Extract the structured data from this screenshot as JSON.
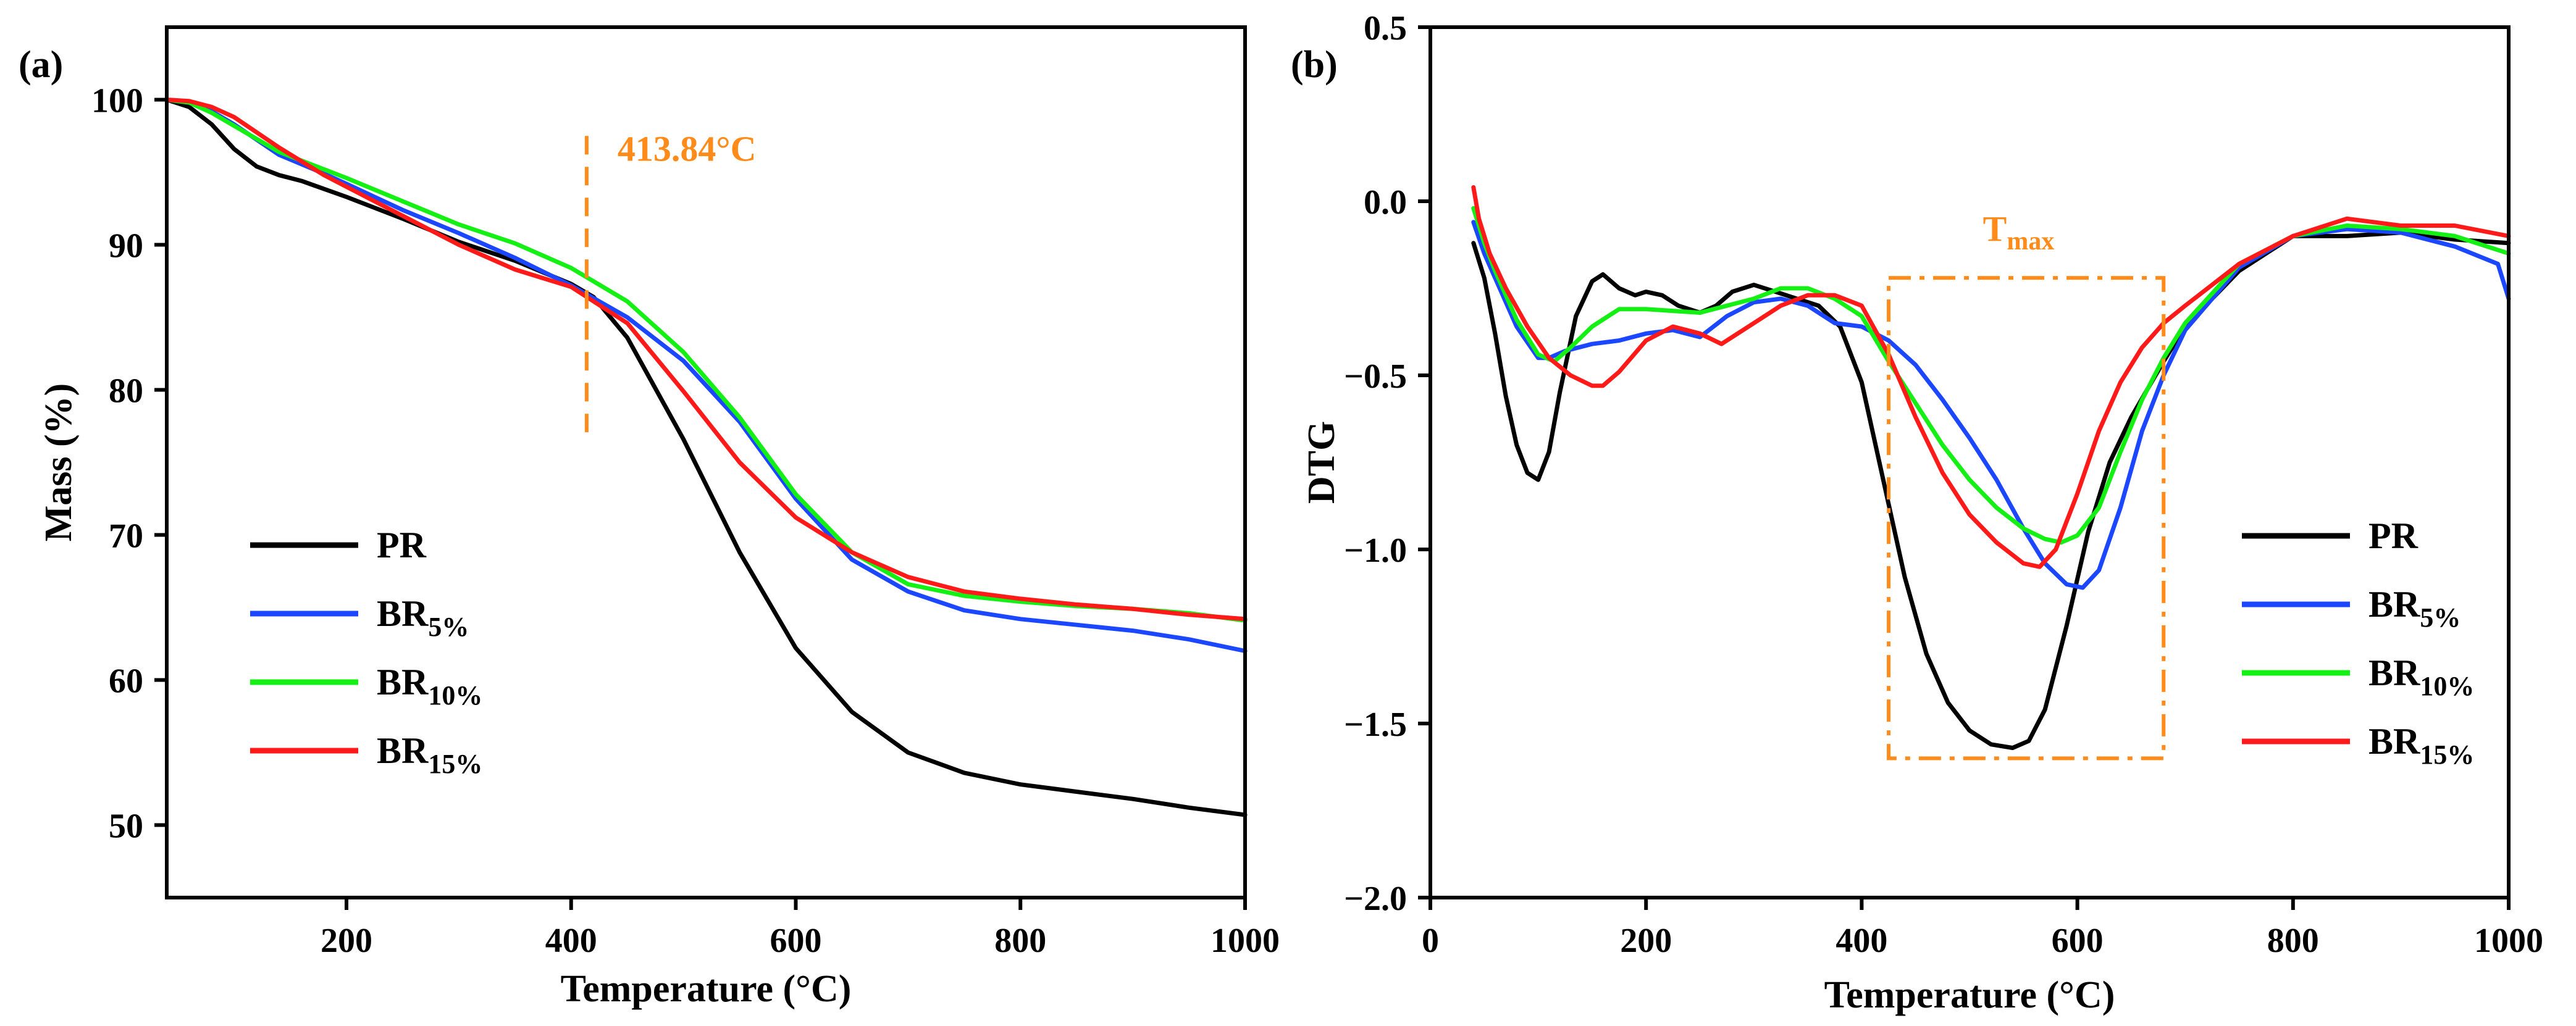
{
  "colors": {
    "PR": "#000000",
    "BR5": "#1a47ff",
    "BR10": "#14f014",
    "BR15": "#ff1a1a",
    "annotation": "#ff8c1a"
  },
  "chart_data": [
    {
      "type": "line",
      "panel_label": "(a)",
      "title": "",
      "xlabel": "Temperature (°C)",
      "ylabel": "Mass (%)",
      "xlim": [
        40,
        1000
      ],
      "ylim": [
        45,
        105
      ],
      "xticks": [
        200,
        400,
        600,
        800,
        1000
      ],
      "yticks": [
        50,
        60,
        70,
        80,
        90,
        100
      ],
      "xtick_labels": [
        "200",
        "400",
        "600",
        "800",
        "1000"
      ],
      "ytick_labels": [
        "50",
        "60",
        "70",
        "80",
        "90",
        "100"
      ],
      "grid": false,
      "legend_position": "lower-left",
      "annotations": [
        {
          "text": "413.84°C",
          "type": "vertical-dashed-line",
          "x": 413.84,
          "y_from": 77,
          "y_to": 97.5
        }
      ],
      "series": [
        {
          "key": "PR",
          "name": "PR",
          "sub": "",
          "color": "#000000",
          "x": [
            40,
            60,
            80,
            100,
            120,
            140,
            160,
            200,
            250,
            300,
            350,
            400,
            420,
            450,
            500,
            550,
            600,
            650,
            700,
            750,
            800,
            850,
            900,
            950,
            1000
          ],
          "y": [
            100,
            99.5,
            98.3,
            96.6,
            95.4,
            94.8,
            94.4,
            93.3,
            91.8,
            90.2,
            88.9,
            87.3,
            86.4,
            83.6,
            76.6,
            68.8,
            62.2,
            57.8,
            55.0,
            53.6,
            52.8,
            52.3,
            51.8,
            51.2,
            50.7
          ]
        },
        {
          "key": "BR5",
          "name": "BR",
          "sub": "5%",
          "color": "#1a47ff",
          "x": [
            40,
            60,
            80,
            100,
            140,
            180,
            200,
            250,
            300,
            350,
            400,
            450,
            500,
            550,
            600,
            650,
            700,
            750,
            800,
            850,
            900,
            950,
            1000
          ],
          "y": [
            100,
            99.8,
            99.2,
            98.3,
            96.2,
            94.9,
            94.2,
            92.4,
            90.8,
            89.1,
            87.2,
            85.0,
            82.0,
            77.8,
            72.5,
            68.3,
            66.1,
            64.8,
            64.2,
            63.8,
            63.4,
            62.8,
            62.0
          ]
        },
        {
          "key": "BR10",
          "name": "BR",
          "sub": "10%",
          "color": "#14f014",
          "x": [
            40,
            60,
            80,
            100,
            140,
            180,
            200,
            250,
            300,
            350,
            400,
            450,
            500,
            550,
            600,
            650,
            700,
            750,
            800,
            850,
            900,
            950,
            1000
          ],
          "y": [
            100,
            99.8,
            99.1,
            98.2,
            96.4,
            95.2,
            94.6,
            93.0,
            91.4,
            90.1,
            88.4,
            86.1,
            82.6,
            78.1,
            72.8,
            68.8,
            66.6,
            65.8,
            65.4,
            65.1,
            64.9,
            64.6,
            64.1
          ]
        },
        {
          "key": "BR15",
          "name": "BR",
          "sub": "15%",
          "color": "#ff1a1a",
          "x": [
            40,
            60,
            80,
            100,
            140,
            180,
            200,
            250,
            300,
            350,
            400,
            450,
            500,
            550,
            600,
            650,
            700,
            750,
            800,
            850,
            900,
            950,
            1000
          ],
          "y": [
            100,
            99.9,
            99.5,
            98.8,
            96.7,
            94.8,
            94.0,
            92.0,
            90.0,
            88.3,
            87.1,
            84.6,
            79.9,
            75.0,
            71.2,
            68.8,
            67.1,
            66.1,
            65.6,
            65.2,
            64.9,
            64.5,
            64.2
          ]
        }
      ]
    },
    {
      "type": "line",
      "panel_label": "(b)",
      "title": "",
      "xlabel": "Temperature (°C)",
      "ylabel": "DTG",
      "xlim": [
        0,
        1000
      ],
      "ylim": [
        -2.0,
        0.5
      ],
      "xticks": [
        0,
        200,
        400,
        600,
        800,
        1000
      ],
      "yticks": [
        0.5,
        0.0,
        -0.5,
        -1.0,
        -1.5,
        -2.0
      ],
      "xtick_labels": [
        "0",
        "200",
        "400",
        "600",
        "800",
        "1000"
      ],
      "ytick_labels": [
        "0.5",
        "0.0",
        "−0.5",
        "−1.0",
        "−1.5",
        "−2.0"
      ],
      "grid": false,
      "legend_position": "right",
      "annotations": [
        {
          "text": "T",
          "subtext": "max",
          "type": "dash-dot-box",
          "x_range": [
            425,
            680
          ],
          "y_range": [
            -1.6,
            -0.22
          ]
        }
      ],
      "series": [
        {
          "key": "PR",
          "name": "PR",
          "sub": "",
          "color": "#000000",
          "x": [
            40,
            50,
            60,
            70,
            80,
            90,
            100,
            110,
            120,
            135,
            150,
            160,
            175,
            190,
            200,
            215,
            230,
            250,
            265,
            280,
            300,
            320,
            340,
            360,
            380,
            400,
            420,
            440,
            460,
            480,
            500,
            520,
            540,
            555,
            570,
            590,
            610,
            630,
            650,
            680,
            700,
            750,
            800,
            850,
            900,
            950,
            1000
          ],
          "y": [
            -0.12,
            -0.22,
            -0.38,
            -0.56,
            -0.7,
            -0.78,
            -0.8,
            -0.72,
            -0.55,
            -0.33,
            -0.23,
            -0.21,
            -0.25,
            -0.27,
            -0.26,
            -0.27,
            -0.3,
            -0.32,
            -0.3,
            -0.26,
            -0.24,
            -0.26,
            -0.28,
            -0.3,
            -0.36,
            -0.52,
            -0.8,
            -1.08,
            -1.3,
            -1.44,
            -1.52,
            -1.56,
            -1.57,
            -1.55,
            -1.46,
            -1.22,
            -0.95,
            -0.75,
            -0.62,
            -0.46,
            -0.36,
            -0.2,
            -0.1,
            -0.1,
            -0.09,
            -0.11,
            -0.12
          ]
        },
        {
          "key": "BR5",
          "name": "BR",
          "sub": "5%",
          "color": "#1a47ff",
          "x": [
            40,
            50,
            60,
            80,
            100,
            110,
            125,
            150,
            175,
            200,
            225,
            250,
            275,
            300,
            325,
            350,
            375,
            400,
            425,
            450,
            475,
            500,
            525,
            550,
            570,
            590,
            605,
            620,
            640,
            660,
            680,
            700,
            750,
            800,
            850,
            900,
            950,
            990,
            1000
          ],
          "y": [
            -0.06,
            -0.15,
            -0.22,
            -0.36,
            -0.45,
            -0.45,
            -0.43,
            -0.41,
            -0.4,
            -0.38,
            -0.37,
            -0.39,
            -0.33,
            -0.29,
            -0.28,
            -0.3,
            -0.35,
            -0.36,
            -0.4,
            -0.47,
            -0.57,
            -0.68,
            -0.8,
            -0.94,
            -1.04,
            -1.1,
            -1.11,
            -1.06,
            -0.88,
            -0.66,
            -0.5,
            -0.37,
            -0.19,
            -0.1,
            -0.08,
            -0.09,
            -0.13,
            -0.18,
            -0.28
          ]
        },
        {
          "key": "BR10",
          "name": "BR",
          "sub": "10%",
          "color": "#14f014",
          "x": [
            40,
            50,
            60,
            80,
            100,
            115,
            130,
            150,
            175,
            200,
            250,
            300,
            325,
            350,
            375,
            400,
            425,
            450,
            475,
            500,
            525,
            550,
            570,
            585,
            600,
            620,
            640,
            660,
            680,
            700,
            750,
            800,
            850,
            900,
            950,
            1000
          ],
          "y": [
            -0.02,
            -0.12,
            -0.2,
            -0.34,
            -0.44,
            -0.46,
            -0.42,
            -0.36,
            -0.31,
            -0.31,
            -0.32,
            -0.28,
            -0.25,
            -0.25,
            -0.28,
            -0.33,
            -0.46,
            -0.58,
            -0.7,
            -0.8,
            -0.88,
            -0.94,
            -0.97,
            -0.98,
            -0.96,
            -0.88,
            -0.72,
            -0.57,
            -0.45,
            -0.35,
            -0.18,
            -0.1,
            -0.07,
            -0.08,
            -0.1,
            -0.15
          ]
        },
        {
          "key": "BR15",
          "name": "BR",
          "sub": "15%",
          "color": "#ff1a1a",
          "x": [
            40,
            45,
            55,
            70,
            90,
            110,
            130,
            150,
            160,
            175,
            200,
            225,
            250,
            270,
            300,
            325,
            350,
            375,
            400,
            425,
            450,
            475,
            500,
            525,
            550,
            565,
            580,
            600,
            620,
            640,
            660,
            680,
            700,
            750,
            800,
            850,
            900,
            950,
            1000
          ],
          "y": [
            0.04,
            -0.05,
            -0.15,
            -0.25,
            -0.36,
            -0.45,
            -0.5,
            -0.53,
            -0.53,
            -0.49,
            -0.4,
            -0.36,
            -0.38,
            -0.41,
            -0.35,
            -0.3,
            -0.27,
            -0.27,
            -0.3,
            -0.44,
            -0.62,
            -0.78,
            -0.9,
            -0.98,
            -1.04,
            -1.05,
            -1.0,
            -0.84,
            -0.66,
            -0.52,
            -0.42,
            -0.35,
            -0.3,
            -0.18,
            -0.1,
            -0.05,
            -0.07,
            -0.07,
            -0.1
          ]
        }
      ]
    }
  ]
}
